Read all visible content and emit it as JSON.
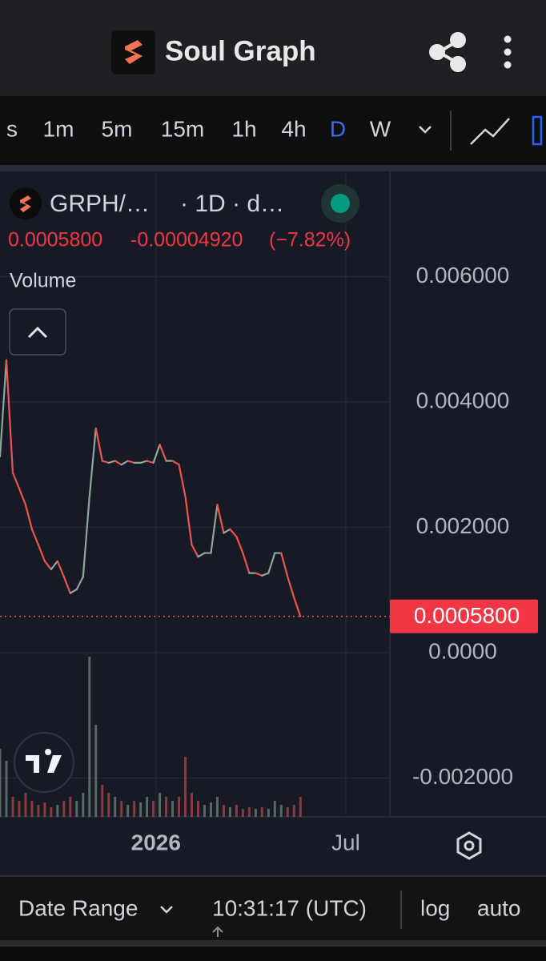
{
  "header": {
    "title": "Soul Graph"
  },
  "toolbar": {
    "intervals": [
      "s",
      "1m",
      "5m",
      "15m",
      "1h",
      "4h",
      "D",
      "W"
    ],
    "active": "D"
  },
  "chart_data": {
    "type": "line",
    "symbol": "GRPH/…",
    "interval": "· 1D · d…",
    "change": "-0.00004920",
    "change_percent": "(−7.82%)",
    "last_price": {
      "value": 0.00058,
      "label": "0.0005800"
    },
    "up_color": "#8fa89b",
    "down_color": "#ef5350",
    "x": [
      0,
      1,
      2,
      3,
      4,
      5,
      6,
      7,
      8,
      9,
      10,
      11,
      12,
      13,
      14,
      15,
      16,
      17,
      18,
      19,
      20,
      21,
      22,
      23,
      24,
      25,
      26,
      27,
      28,
      29,
      30,
      31,
      32,
      33,
      34,
      35,
      36,
      37,
      38,
      39,
      40,
      41,
      42,
      43,
      44,
      45,
      46,
      47
    ],
    "values": [
      0.00313,
      0.00467,
      0.00287,
      0.00262,
      0.00236,
      0.00197,
      0.00172,
      0.00146,
      0.00133,
      0.00146,
      0.00121,
      0.00095,
      0.00101,
      0.00121,
      0.00249,
      0.00358,
      0.00306,
      0.00303,
      0.00306,
      0.003,
      0.00306,
      0.00303,
      0.00303,
      0.00306,
      0.00303,
      0.00332,
      0.00306,
      0.00306,
      0.003,
      0.00249,
      0.00172,
      0.00153,
      0.00159,
      0.00159,
      0.00236,
      0.00191,
      0.00197,
      0.00185,
      0.00159,
      0.00127,
      0.00127,
      0.00123,
      0.00127,
      0.00159,
      0.00159,
      0.00121,
      0.00088,
      0.00058
    ],
    "volume": {
      "name": "Volume",
      "values": [
        85,
        70,
        25,
        20,
        30,
        20,
        15,
        18,
        12,
        15,
        20,
        25,
        20,
        30,
        200,
        115,
        40,
        30,
        25,
        20,
        15,
        20,
        18,
        25,
        20,
        30,
        25,
        20,
        25,
        75,
        30,
        20,
        15,
        18,
        25,
        15,
        12,
        15,
        10,
        12,
        10,
        12,
        10,
        20,
        15,
        12,
        15,
        25
      ]
    },
    "xlim": [
      0,
      61
    ],
    "xticks": [
      {
        "value": 24.4,
        "label": "2026"
      },
      {
        "value": 54.1,
        "label": "Jul"
      }
    ],
    "ylim": [
      -0.00262,
      0.00768
    ],
    "yticks": [
      {
        "value": 0.006,
        "label": "0.006000"
      },
      {
        "value": 0.004,
        "label": "0.004000"
      },
      {
        "value": 0.002,
        "label": "0.002000"
      },
      {
        "value": 0,
        "label": "0.0000"
      },
      {
        "value": -0.002,
        "label": "-0.002000"
      }
    ],
    "grid": true,
    "log_scale": false
  },
  "footer": {
    "date_range": "Date Range",
    "time": "10:31:17 (UTC)",
    "log": "log",
    "auto": "auto"
  }
}
